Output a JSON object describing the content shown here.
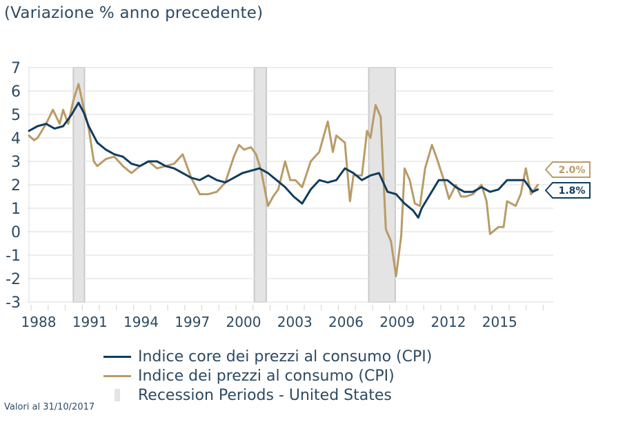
{
  "header": {
    "title": "(Variazione % anno precedente)"
  },
  "colors": {
    "core": "#0f3c5f",
    "headline": "#b99b67",
    "recession_fill": "#e4e4e4",
    "recession_stroke": "#c9c9c9",
    "grid": "#e2e2e2",
    "text": "#2c4a63"
  },
  "chart_data": {
    "type": "line",
    "title": "(Variazione % anno precedente)",
    "xlabel": "",
    "ylabel": "",
    "xlim": [
      1988,
      2018.9
    ],
    "ylim": [
      -3,
      7
    ],
    "grid": true,
    "y_ticks": [
      "7",
      "6",
      "5",
      "4",
      "3",
      "2",
      "1",
      "0",
      "-1",
      "-2",
      "-3"
    ],
    "y_tick_values": [
      7,
      6,
      5,
      4,
      3,
      2,
      1,
      0,
      -1,
      -2,
      -3
    ],
    "x_ticks": [
      "1988",
      "1991",
      "1994",
      "1997",
      "2000",
      "2003",
      "2006",
      "2009",
      "2012",
      "2015"
    ],
    "x_tick_values": [
      1988,
      1991,
      1994,
      1997,
      2000,
      2003,
      2006,
      2009,
      2012,
      2015
    ],
    "recessions": [
      {
        "start": 1990.6,
        "end": 1991.25
      },
      {
        "start": 2001.2,
        "end": 2001.9
      },
      {
        "start": 2007.9,
        "end": 2009.45
      }
    ],
    "legend_placement": "bottom",
    "series": [
      {
        "name": "Indice core dei prezzi al consumo (CPI)",
        "key": "core",
        "end_label": "1.8%",
        "x": [
          1988.0,
          1988.5,
          1989.0,
          1989.5,
          1990.0,
          1990.5,
          1990.9,
          1991.2,
          1991.5,
          1992.0,
          1992.5,
          1993.0,
          1993.5,
          1994.0,
          1994.5,
          1995.0,
          1995.5,
          1996.0,
          1996.5,
          1997.0,
          1997.5,
          1998.0,
          1998.5,
          1999.0,
          1999.5,
          2000.0,
          2000.5,
          2001.0,
          2001.5,
          2002.0,
          2002.5,
          2003.0,
          2003.5,
          2004.0,
          2004.5,
          2005.0,
          2005.5,
          2006.0,
          2006.5,
          2007.0,
          2007.5,
          2008.0,
          2008.5,
          2009.0,
          2009.5,
          2010.0,
          2010.5,
          2010.8,
          2011.0,
          2011.5,
          2012.0,
          2012.5,
          2013.0,
          2013.5,
          2014.0,
          2014.5,
          2015.0,
          2015.5,
          2016.0,
          2016.5,
          2017.0,
          2017.5,
          2017.8
        ],
        "values": [
          4.3,
          4.5,
          4.6,
          4.4,
          4.5,
          5.0,
          5.5,
          5.1,
          4.5,
          3.8,
          3.5,
          3.3,
          3.2,
          2.9,
          2.8,
          3.0,
          3.0,
          2.8,
          2.7,
          2.5,
          2.3,
          2.2,
          2.4,
          2.2,
          2.1,
          2.3,
          2.5,
          2.6,
          2.7,
          2.5,
          2.2,
          1.9,
          1.5,
          1.2,
          1.8,
          2.2,
          2.1,
          2.2,
          2.7,
          2.5,
          2.2,
          2.4,
          2.5,
          1.7,
          1.6,
          1.2,
          0.9,
          0.6,
          1.0,
          1.6,
          2.2,
          2.2,
          1.9,
          1.7,
          1.7,
          1.9,
          1.7,
          1.8,
          2.2,
          2.2,
          2.2,
          1.7,
          1.8
        ]
      },
      {
        "name": "Indice dei prezzi al consumo (CPI)",
        "key": "headline",
        "end_label": "2.0%",
        "x": [
          1988.0,
          1988.3,
          1988.5,
          1989.0,
          1989.4,
          1989.8,
          1990.0,
          1990.3,
          1990.6,
          1990.9,
          1991.2,
          1991.5,
          1991.8,
          1992.0,
          1992.5,
          1993.0,
          1993.5,
          1994.0,
          1994.5,
          1995.0,
          1995.5,
          1996.0,
          1996.5,
          1997.0,
          1997.5,
          1998.0,
          1998.5,
          1999.0,
          1999.5,
          2000.0,
          2000.3,
          2000.6,
          2001.0,
          2001.3,
          2001.6,
          2002.0,
          2002.3,
          2002.6,
          2003.0,
          2003.3,
          2003.6,
          2004.0,
          2004.5,
          2005.0,
          2005.5,
          2005.8,
          2006.0,
          2006.5,
          2006.8,
          2007.0,
          2007.5,
          2007.8,
          2008.0,
          2008.3,
          2008.6,
          2008.9,
          2009.2,
          2009.5,
          2009.8,
          2010.0,
          2010.3,
          2010.6,
          2010.9,
          2011.2,
          2011.6,
          2011.9,
          2012.3,
          2012.6,
          2013.0,
          2013.3,
          2013.6,
          2014.0,
          2014.5,
          2014.8,
          2015.0,
          2015.5,
          2015.8,
          2016.0,
          2016.5,
          2016.8,
          2017.1,
          2017.4,
          2017.8
        ],
        "values": [
          4.1,
          3.9,
          4.0,
          4.6,
          5.2,
          4.6,
          5.2,
          4.6,
          5.6,
          6.3,
          5.3,
          4.4,
          3.0,
          2.8,
          3.1,
          3.2,
          2.8,
          2.5,
          2.8,
          3.0,
          2.7,
          2.8,
          2.9,
          3.3,
          2.3,
          1.6,
          1.6,
          1.7,
          2.1,
          3.2,
          3.7,
          3.5,
          3.6,
          3.3,
          2.6,
          1.1,
          1.5,
          1.8,
          3.0,
          2.2,
          2.2,
          1.9,
          3.0,
          3.4,
          4.7,
          3.4,
          4.1,
          3.8,
          1.3,
          2.4,
          2.4,
          4.3,
          4.0,
          5.4,
          4.9,
          0.1,
          -0.4,
          -1.9,
          -0.2,
          2.7,
          2.2,
          1.2,
          1.1,
          2.7,
          3.7,
          3.1,
          2.2,
          1.4,
          2.0,
          1.5,
          1.5,
          1.6,
          2.0,
          1.3,
          -0.1,
          0.2,
          0.2,
          1.3,
          1.1,
          1.6,
          2.7,
          1.6,
          2.0
        ]
      }
    ]
  },
  "legend": {
    "items": [
      {
        "label": "Indice core dei prezzi al consumo (CPI)",
        "type": "core"
      },
      {
        "label": "Indice dei prezzi al consumo (CPI)",
        "type": "headline"
      },
      {
        "label": "Recession Periods - United States",
        "type": "recession"
      }
    ]
  },
  "footnote": "Valori al 31/10/2017"
}
